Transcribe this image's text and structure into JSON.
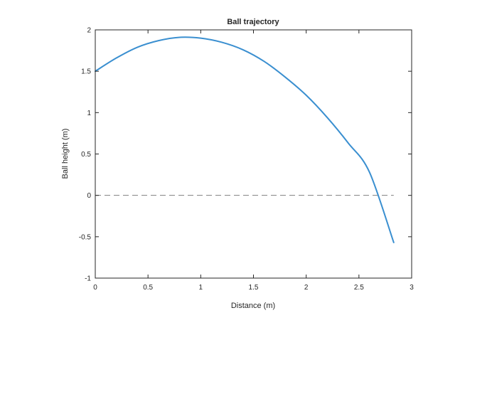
{
  "chart_data": {
    "type": "line",
    "title": "Ball trajectory",
    "xlabel": "Distance (m)",
    "ylabel": "Ball height (m)",
    "xlim": [
      0,
      3
    ],
    "ylim": [
      -1,
      2
    ],
    "xticks": [
      0,
      0.5,
      1,
      1.5,
      2,
      2.5,
      3
    ],
    "xtick_labels": [
      "0",
      "0.5",
      "1",
      "1.5",
      "2",
      "2.5",
      "3"
    ],
    "yticks": [
      -1,
      -0.5,
      0,
      0.5,
      1,
      1.5,
      2
    ],
    "ytick_labels": [
      "-1",
      "-0.5",
      "0",
      "0.5",
      "1",
      "1.5",
      "2"
    ],
    "grid": false,
    "series": [
      {
        "color": "#3a8fd0",
        "x": [
          0,
          0.2,
          0.4,
          0.6,
          0.8,
          1.0,
          1.2,
          1.4,
          1.6,
          1.8,
          2.0,
          2.2,
          2.4,
          2.6,
          2.83
        ],
        "y": [
          1.5,
          1.66,
          1.79,
          1.87,
          1.91,
          1.9,
          1.85,
          1.76,
          1.62,
          1.43,
          1.21,
          0.94,
          0.63,
          0.28,
          -0.57
        ]
      }
    ],
    "reference_line": {
      "y": 0,
      "x_range": [
        0,
        2.83
      ],
      "style": "dashed",
      "color": "#7f7f7f"
    },
    "box": true
  }
}
